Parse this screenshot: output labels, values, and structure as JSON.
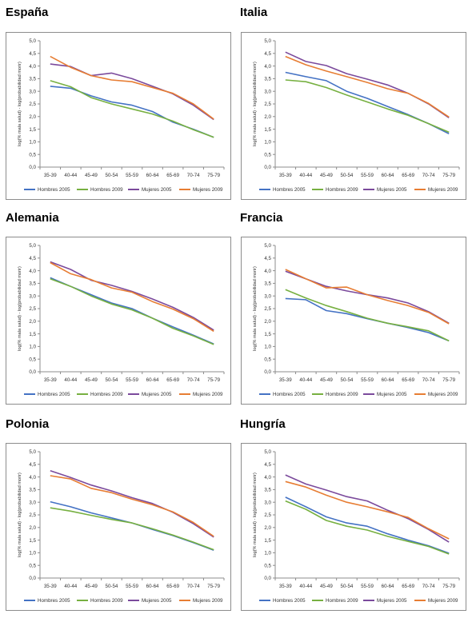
{
  "chart_data": [
    {
      "type": "line",
      "title": "España",
      "ylabel": "log(% mala salud) - log(probabilidad morir)",
      "categories": [
        "35-39",
        "40-44",
        "45-49",
        "50-54",
        "55-59",
        "60-64",
        "65-69",
        "70-74",
        "75-79"
      ],
      "ylim": [
        0,
        5
      ],
      "yticks": [
        "0,0",
        "0,5",
        "1,0",
        "1,5",
        "2,0",
        "2,5",
        "3,0",
        "3,5",
        "4,0",
        "4,5",
        "5,0"
      ],
      "grid": false,
      "legend": "bottom",
      "series": [
        {
          "name": "Hombres 2005",
          "color": "#4472c4",
          "values": [
            3.2,
            3.12,
            2.82,
            2.58,
            2.45,
            2.2,
            1.78,
            1.5,
            1.18
          ]
        },
        {
          "name": "Hombres 2009",
          "color": "#77b041",
          "values": [
            3.42,
            3.18,
            2.75,
            2.5,
            2.3,
            2.1,
            1.82,
            1.48,
            1.18
          ]
        },
        {
          "name": "Mujeres 2005",
          "color": "#7b4a9c",
          "values": [
            4.08,
            3.98,
            3.62,
            3.72,
            3.5,
            3.2,
            2.9,
            2.45,
            1.88
          ]
        },
        {
          "name": "Mujeres 2009",
          "color": "#e77d33",
          "values": [
            4.38,
            3.95,
            3.62,
            3.45,
            3.38,
            3.15,
            2.92,
            2.5,
            1.9
          ]
        }
      ]
    },
    {
      "type": "line",
      "title": "Italia",
      "ylabel": "log(% mala salud) - log(probabilidad morir)",
      "categories": [
        "35-39",
        "40-44",
        "45-49",
        "50-54",
        "55-59",
        "60-64",
        "65-69",
        "70-74",
        "75-79"
      ],
      "ylim": [
        0,
        5
      ],
      "yticks": [
        "0,0",
        "0,5",
        "1,0",
        "1,5",
        "2,0",
        "2,5",
        "3,0",
        "3,5",
        "4,0",
        "4,5",
        "5,0"
      ],
      "grid": false,
      "legend": "bottom",
      "series": [
        {
          "name": "Hombres 2005",
          "color": "#4472c4",
          "values": [
            3.75,
            3.58,
            3.42,
            3.0,
            2.72,
            2.4,
            2.08,
            1.72,
            1.32
          ]
        },
        {
          "name": "Hombres 2009",
          "color": "#77b041",
          "values": [
            3.45,
            3.38,
            3.15,
            2.85,
            2.58,
            2.3,
            2.05,
            1.72,
            1.38
          ]
        },
        {
          "name": "Mujeres 2005",
          "color": "#7b4a9c",
          "values": [
            4.55,
            4.18,
            4.02,
            3.7,
            3.48,
            3.25,
            2.92,
            2.5,
            1.95
          ]
        },
        {
          "name": "Mujeres 2009",
          "color": "#e77d33",
          "values": [
            4.38,
            4.05,
            3.8,
            3.58,
            3.35,
            3.1,
            2.92,
            2.52,
            1.98
          ]
        }
      ]
    },
    {
      "type": "line",
      "title": "Alemania",
      "ylabel": "log(% mala salud) - log(probabilidad morir)",
      "categories": [
        "35-39",
        "40-44",
        "45-49",
        "50-54",
        "55-59",
        "60-64",
        "65-69",
        "70-74",
        "75-79"
      ],
      "ylim": [
        0,
        5
      ],
      "yticks": [
        "0,0",
        "0,5",
        "1,0",
        "1,5",
        "2,0",
        "2,5",
        "3,0",
        "3,5",
        "4,0",
        "4,5",
        "5,0"
      ],
      "grid": false,
      "legend": "bottom",
      "series": [
        {
          "name": "Hombres 2005",
          "color": "#4472c4",
          "values": [
            3.72,
            3.38,
            3.05,
            2.72,
            2.5,
            2.12,
            1.78,
            1.45,
            1.1
          ]
        },
        {
          "name": "Hombres 2009",
          "color": "#77b041",
          "values": [
            3.68,
            3.38,
            3.0,
            2.68,
            2.45,
            2.12,
            1.72,
            1.42,
            1.08
          ]
        },
        {
          "name": "Mujeres 2005",
          "color": "#7b4a9c",
          "values": [
            4.35,
            4.05,
            3.62,
            3.42,
            3.18,
            2.88,
            2.55,
            2.15,
            1.65
          ]
        },
        {
          "name": "Mujeres 2009",
          "color": "#e77d33",
          "values": [
            4.32,
            3.88,
            3.65,
            3.32,
            3.15,
            2.78,
            2.48,
            2.1,
            1.6
          ]
        }
      ]
    },
    {
      "type": "line",
      "title": "Francia",
      "ylabel": "log(% mala salud) - log(probabilidad morir)",
      "categories": [
        "35-39",
        "40-44",
        "45-49",
        "50-54",
        "55-59",
        "60-64",
        "65-69",
        "70-74",
        "75-79"
      ],
      "ylim": [
        0,
        5
      ],
      "yticks": [
        "0,0",
        "0,5",
        "1,0",
        "1,5",
        "2,0",
        "2,5",
        "3,0",
        "3,5",
        "4,0",
        "4,5",
        "5,0"
      ],
      "grid": false,
      "legend": "bottom",
      "series": [
        {
          "name": "Hombres 2005",
          "color": "#4472c4",
          "values": [
            2.9,
            2.85,
            2.42,
            2.3,
            2.1,
            1.92,
            1.75,
            1.55,
            1.22
          ]
        },
        {
          "name": "Hombres 2009",
          "color": "#77b041",
          "values": [
            3.25,
            2.92,
            2.62,
            2.38,
            2.12,
            1.92,
            1.78,
            1.62,
            1.22
          ]
        },
        {
          "name": "Mujeres 2005",
          "color": "#7b4a9c",
          "values": [
            3.98,
            3.68,
            3.38,
            3.2,
            3.05,
            2.92,
            2.72,
            2.38,
            1.92
          ]
        },
        {
          "name": "Mujeres 2009",
          "color": "#e77d33",
          "values": [
            4.05,
            3.68,
            3.32,
            3.35,
            3.05,
            2.82,
            2.62,
            2.35,
            1.9
          ]
        }
      ]
    },
    {
      "type": "line",
      "title": "Polonia",
      "ylabel": "log(% mala salud) - log(probabilidad morir)",
      "categories": [
        "35-39",
        "40-44",
        "45-49",
        "50-54",
        "55-59",
        "60-64",
        "65-69",
        "70-74",
        "75-79"
      ],
      "ylim": [
        0,
        5
      ],
      "yticks": [
        "0,0",
        "0,5",
        "1,0",
        "1,5",
        "2,0",
        "2,5",
        "3,0",
        "3,5",
        "4,0",
        "4,5",
        "5,0"
      ],
      "grid": false,
      "legend": "bottom",
      "series": [
        {
          "name": "Hombres 2005",
          "color": "#4472c4",
          "values": [
            3.02,
            2.82,
            2.58,
            2.38,
            2.18,
            1.92,
            1.68,
            1.4,
            1.1
          ]
        },
        {
          "name": "Hombres 2009",
          "color": "#77b041",
          "values": [
            2.78,
            2.65,
            2.48,
            2.32,
            2.18,
            1.95,
            1.7,
            1.42,
            1.12
          ]
        },
        {
          "name": "Mujeres 2005",
          "color": "#7b4a9c",
          "values": [
            4.25,
            3.98,
            3.68,
            3.45,
            3.18,
            2.95,
            2.6,
            2.15,
            1.62
          ]
        },
        {
          "name": "Mujeres 2009",
          "color": "#e77d33",
          "values": [
            4.05,
            3.92,
            3.55,
            3.38,
            3.12,
            2.9,
            2.62,
            2.2,
            1.65
          ]
        }
      ]
    },
    {
      "type": "line",
      "title": "Hungría",
      "ylabel": "log(% mala salud) - log(probabilidad morir)",
      "categories": [
        "35-39",
        "40-44",
        "45-49",
        "50-54",
        "55-59",
        "60-64",
        "65-69",
        "70-74",
        "75-79"
      ],
      "ylim": [
        0,
        5
      ],
      "yticks": [
        "0,0",
        "0,5",
        "1,0",
        "1,5",
        "2,0",
        "2,5",
        "3,0",
        "3,5",
        "4,0",
        "4,5",
        "5,0"
      ],
      "grid": false,
      "legend": "bottom",
      "series": [
        {
          "name": "Hombres 2005",
          "color": "#4472c4",
          "values": [
            3.2,
            2.82,
            2.42,
            2.18,
            2.05,
            1.75,
            1.5,
            1.28,
            0.98
          ]
        },
        {
          "name": "Hombres 2009",
          "color": "#77b041",
          "values": [
            3.05,
            2.72,
            2.28,
            2.05,
            1.9,
            1.65,
            1.45,
            1.25,
            0.95
          ]
        },
        {
          "name": "Mujeres 2005",
          "color": "#7b4a9c",
          "values": [
            4.08,
            3.72,
            3.48,
            3.22,
            3.05,
            2.68,
            2.35,
            1.92,
            1.42
          ]
        },
        {
          "name": "Mujeres 2009",
          "color": "#e77d33",
          "values": [
            3.82,
            3.6,
            3.28,
            3.0,
            2.82,
            2.62,
            2.4,
            1.95,
            1.55
          ]
        }
      ]
    }
  ]
}
